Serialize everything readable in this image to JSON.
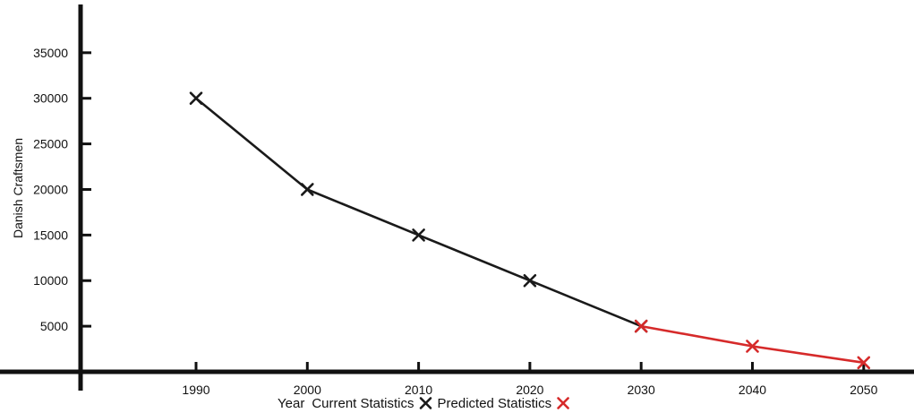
{
  "chart_data": {
    "type": "line",
    "title": "",
    "xlabel": "Year",
    "ylabel": "Danish Craftsmen",
    "x_ticks": [
      "1990",
      "2000",
      "2010",
      "2020",
      "2030",
      "2040",
      "2050"
    ],
    "y_ticks": [
      "5000",
      "10000",
      "15000",
      "20000",
      "25000",
      "30000",
      "35000"
    ],
    "ylim": [
      0,
      38000
    ],
    "grid": false,
    "series": [
      {
        "name": "Current Statistics",
        "color": "#1a1a1a",
        "marker": "x",
        "x": [
          1990,
          2000,
          2010,
          2020,
          2030
        ],
        "y": [
          30000,
          20000,
          15000,
          10000,
          5000
        ]
      },
      {
        "name": "Predicted Statistics",
        "color": "#d62a2a",
        "marker": "x",
        "x": [
          2030,
          2040,
          2050
        ],
        "y": [
          5000,
          2800,
          1000
        ]
      }
    ]
  }
}
